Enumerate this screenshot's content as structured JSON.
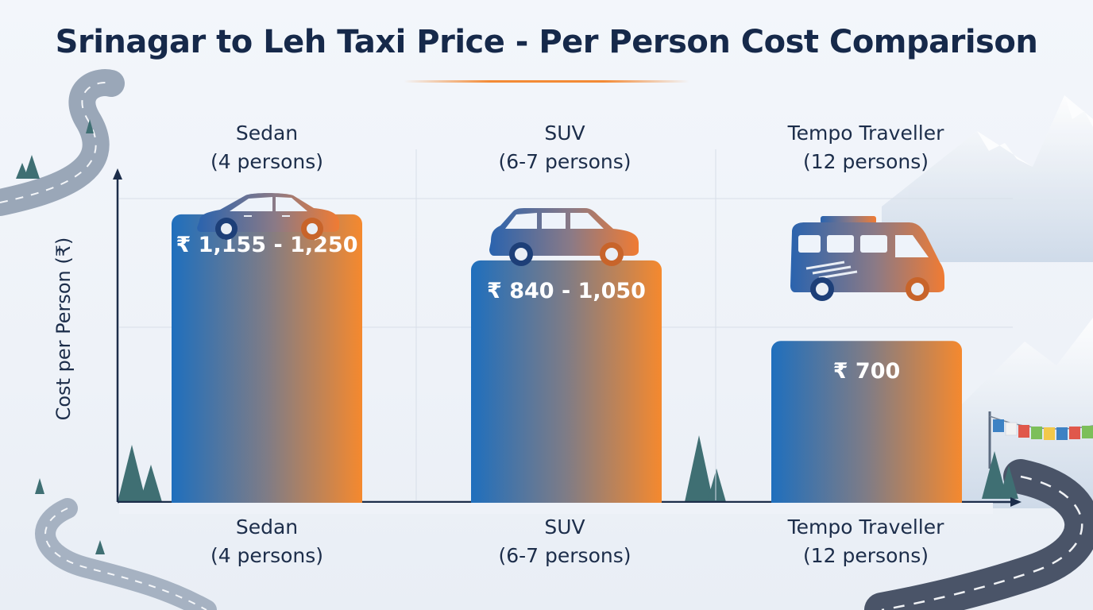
{
  "title": "Srinagar to Leh Taxi Price - Per Person Cost Comparison",
  "chart_data": {
    "type": "bar",
    "title": "Srinagar to Leh Taxi Price - Per Person Cost Comparison",
    "xlabel": "",
    "ylabel": "Cost per Person (₹)",
    "currency": "₹",
    "grid": true,
    "ylim": [
      0,
      1450
    ],
    "categories": [
      {
        "name": "Sedan",
        "capacity": "(4 persons)",
        "icon": "sedan-car-icon",
        "low": 1155,
        "high": 1250,
        "value_label": "₹ 1,155 - 1,250"
      },
      {
        "name": "SUV",
        "capacity": "(6-7 persons)",
        "icon": "suv-car-icon",
        "low": 840,
        "high": 1050,
        "value_label": "₹ 840 - 1,050"
      },
      {
        "name": "Tempo Traveller",
        "capacity": "(12 persons)",
        "icon": "tempo-traveller-icon",
        "low": 700,
        "high": 700,
        "value_label": "₹ 700"
      }
    ]
  },
  "colors": {
    "title": "#16294a",
    "bar_start": "#1f6fbd",
    "bar_end": "#f5892e",
    "accent": "#f38a35",
    "axis": "#1c2d4a"
  }
}
